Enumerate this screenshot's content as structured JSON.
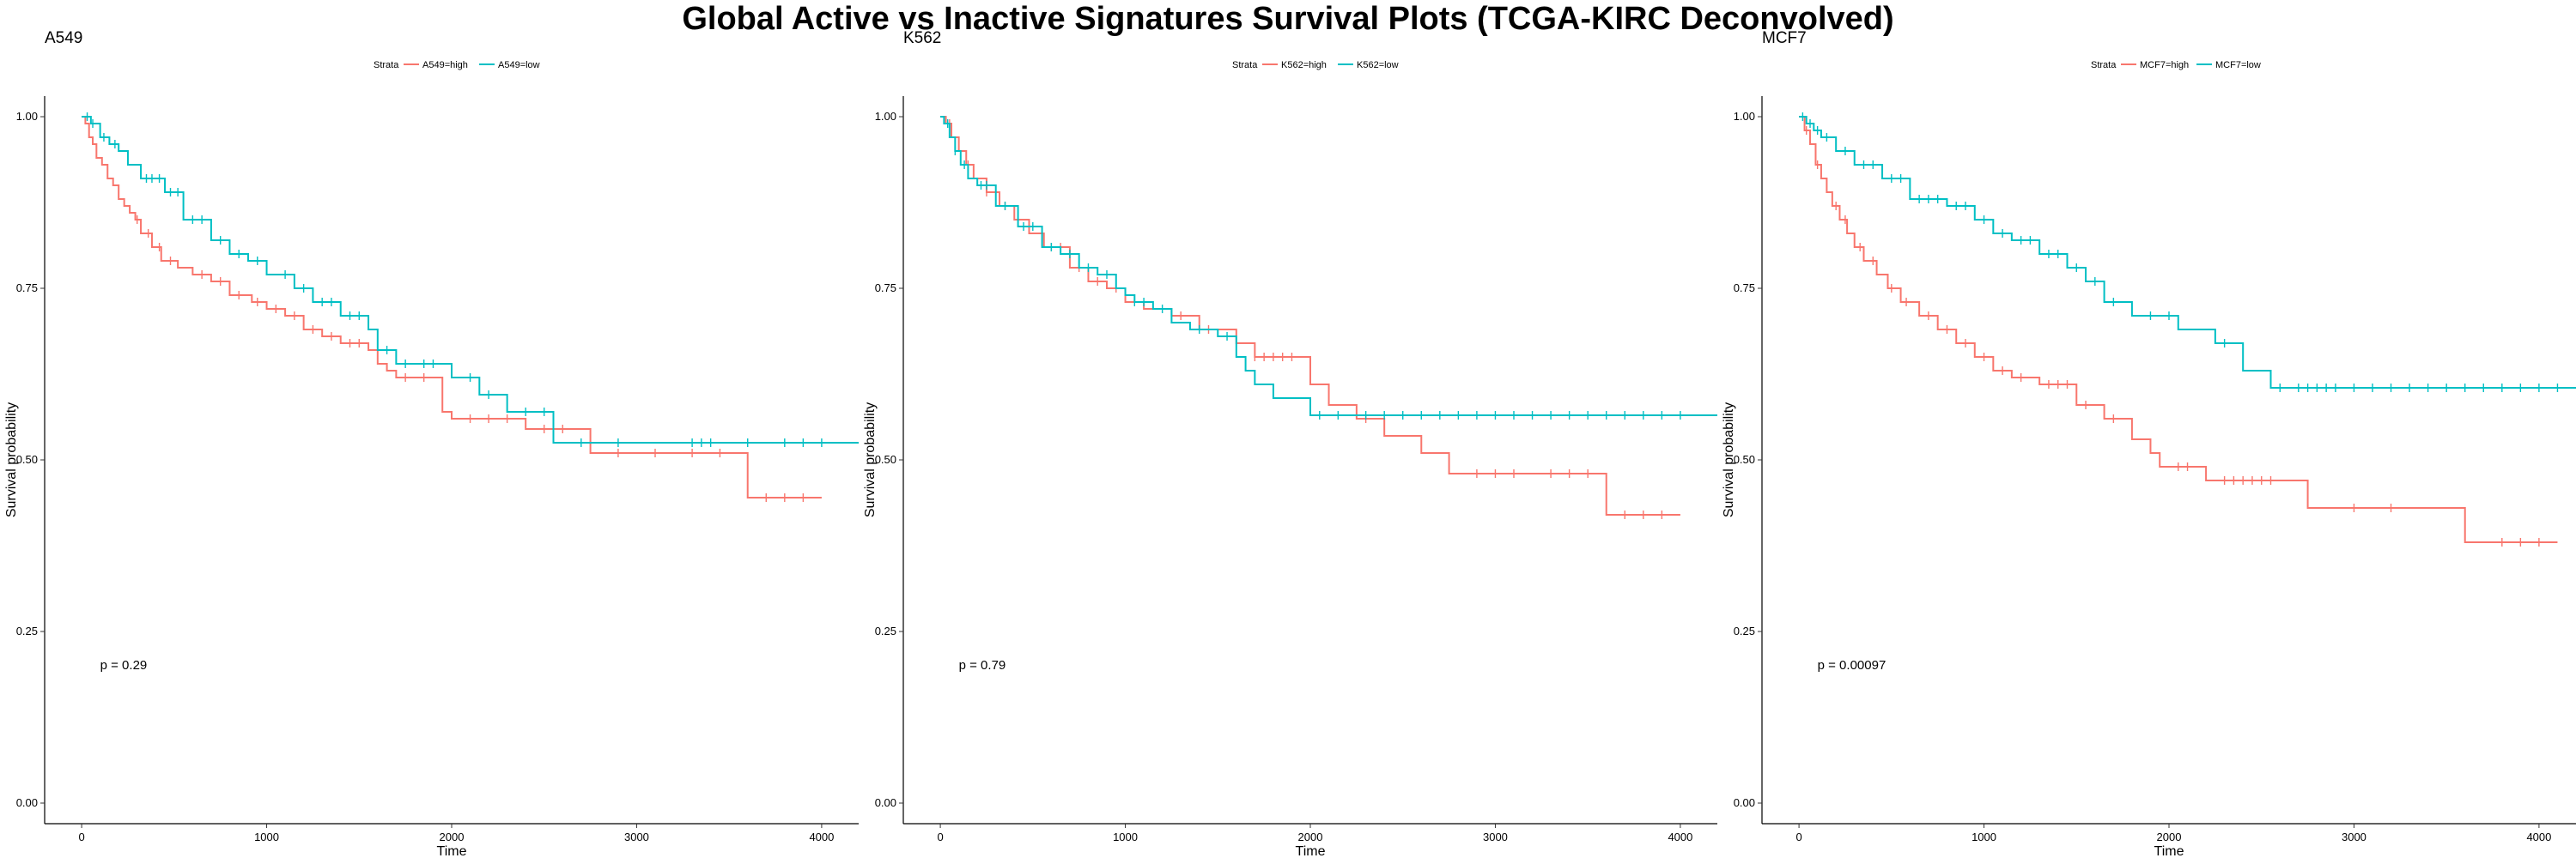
{
  "page": {
    "title": "Global Active vs Inactive Signatures Survival Plots (TCGA-KIRC Deconvolved)"
  },
  "colors": {
    "high": "#F8766D",
    "low": "#00BFC4",
    "axis": "#000000"
  },
  "chart_data": [
    {
      "type": "line",
      "subtype": "kaplan-meier-step",
      "title": "A549",
      "xlabel": "Time",
      "ylabel": "Survival probability",
      "xlim": [
        -200,
        4200
      ],
      "ylim": [
        -0.03,
        1.03
      ],
      "x_ticks": [
        0,
        1000,
        2000,
        3000,
        4000
      ],
      "x_tick_labels": [
        "0",
        "1000",
        "2000",
        "3000",
        "4000"
      ],
      "y_ticks": [
        0,
        0.25,
        0.5,
        0.75,
        1.0
      ],
      "y_tick_labels": [
        "0.00",
        "0.25",
        "0.50",
        "0.75",
        "1.00"
      ],
      "grid": false,
      "legend": {
        "title": "Strata",
        "position": "top",
        "labels": [
          "A549=high",
          "A549=low"
        ]
      },
      "annotation": "p = 0.29",
      "series": [
        {
          "name": "A549=high",
          "color": "#F8766D",
          "x": [
            0,
            20,
            40,
            60,
            80,
            110,
            140,
            170,
            200,
            230,
            260,
            290,
            320,
            380,
            430,
            520,
            600,
            700,
            800,
            920,
            1000,
            1100,
            1200,
            1300,
            1400,
            1550,
            1600,
            1650,
            1700,
            1950,
            2000,
            2400,
            2750,
            3600,
            3650
          ],
          "y": [
            1.0,
            0.99,
            0.97,
            0.96,
            0.94,
            0.93,
            0.91,
            0.9,
            0.88,
            0.87,
            0.86,
            0.85,
            0.83,
            0.81,
            0.79,
            0.78,
            0.77,
            0.76,
            0.74,
            0.73,
            0.72,
            0.71,
            0.69,
            0.68,
            0.67,
            0.66,
            0.64,
            0.63,
            0.62,
            0.57,
            0.56,
            0.545,
            0.51,
            0.445,
            0.445
          ],
          "censor_x": [
            300,
            360,
            420,
            480,
            650,
            750,
            850,
            950,
            1050,
            1150,
            1250,
            1350,
            1450,
            1500,
            1750,
            1850,
            2100,
            2200,
            2300,
            2500,
            2600,
            2900,
            3100,
            3300,
            3450,
            3700,
            3800,
            3900
          ],
          "end_x": 4000
        },
        {
          "name": "A549=low",
          "color": "#00BFC4",
          "x": [
            0,
            50,
            100,
            150,
            200,
            250,
            320,
            450,
            550,
            700,
            800,
            900,
            1000,
            1150,
            1250,
            1400,
            1550,
            1600,
            1700,
            2000,
            2150,
            2300,
            2550
          ],
          "y": [
            1.0,
            0.99,
            0.97,
            0.96,
            0.95,
            0.93,
            0.91,
            0.89,
            0.85,
            0.82,
            0.8,
            0.79,
            0.77,
            0.75,
            0.73,
            0.71,
            0.69,
            0.66,
            0.64,
            0.62,
            0.595,
            0.57,
            0.525
          ],
          "censor_x": [
            30,
            60,
            120,
            180,
            350,
            380,
            420,
            480,
            520,
            600,
            650,
            750,
            850,
            950,
            1100,
            1200,
            1300,
            1350,
            1450,
            1500,
            1650,
            1750,
            1850,
            1900,
            2100,
            2200,
            2400,
            2500,
            2700,
            2900,
            3300,
            3350,
            3400,
            3600,
            3800,
            3900,
            4000
          ],
          "end_x": 4200
        }
      ]
    },
    {
      "type": "line",
      "subtype": "kaplan-meier-step",
      "title": "K562",
      "xlabel": "Time",
      "ylabel": "Survival probability",
      "xlim": [
        -200,
        4200
      ],
      "ylim": [
        -0.03,
        1.03
      ],
      "x_ticks": [
        0,
        1000,
        2000,
        3000,
        4000
      ],
      "x_tick_labels": [
        "0",
        "1000",
        "2000",
        "3000",
        "4000"
      ],
      "y_ticks": [
        0,
        0.25,
        0.5,
        0.75,
        1.0
      ],
      "y_tick_labels": [
        "0.00",
        "0.25",
        "0.50",
        "0.75",
        "1.00"
      ],
      "grid": false,
      "legend": {
        "title": "Strata",
        "position": "top",
        "labels": [
          "K562=high",
          "K562=low"
        ]
      },
      "annotation": "p = 0.79",
      "series": [
        {
          "name": "K562=high",
          "color": "#F8766D",
          "x": [
            0,
            30,
            60,
            100,
            140,
            180,
            250,
            320,
            400,
            480,
            560,
            700,
            800,
            900,
            1000,
            1100,
            1250,
            1400,
            1600,
            1700,
            2000,
            2100,
            2250,
            2400,
            2600,
            2750,
            3600,
            3650
          ],
          "y": [
            1.0,
            0.99,
            0.97,
            0.95,
            0.93,
            0.91,
            0.89,
            0.87,
            0.85,
            0.83,
            0.81,
            0.78,
            0.76,
            0.75,
            0.73,
            0.72,
            0.71,
            0.69,
            0.67,
            0.65,
            0.61,
            0.58,
            0.56,
            0.535,
            0.51,
            0.48,
            0.42,
            0.42
          ],
          "censor_x": [
            50,
            150,
            250,
            350,
            600,
            650,
            750,
            850,
            950,
            1300,
            1450,
            1700,
            1750,
            1800,
            1850,
            1900,
            2300,
            2900,
            3000,
            3100,
            3300,
            3400,
            3500,
            3700,
            3800,
            3900
          ],
          "end_x": 4000
        },
        {
          "name": "K562=low",
          "color": "#00BFC4",
          "x": [
            0,
            20,
            50,
            80,
            110,
            150,
            200,
            300,
            420,
            550,
            650,
            750,
            850,
            950,
            1000,
            1050,
            1150,
            1250,
            1350,
            1500,
            1600,
            1650,
            1700,
            1800,
            2000
          ],
          "y": [
            1.0,
            0.99,
            0.97,
            0.95,
            0.93,
            0.91,
            0.9,
            0.87,
            0.84,
            0.81,
            0.8,
            0.78,
            0.77,
            0.75,
            0.74,
            0.73,
            0.72,
            0.7,
            0.69,
            0.68,
            0.65,
            0.63,
            0.61,
            0.59,
            0.565
          ],
          "censor_x": [
            40,
            80,
            130,
            220,
            250,
            350,
            450,
            500,
            600,
            700,
            800,
            900,
            1050,
            1100,
            1200,
            1400,
            1550,
            2050,
            2150,
            2300,
            2400,
            2500,
            2600,
            2700,
            2800,
            2900,
            3000,
            3100,
            3200,
            3300,
            3400,
            3500,
            3600,
            3700,
            3800,
            3900,
            4000
          ],
          "end_x": 4200
        }
      ]
    },
    {
      "type": "line",
      "subtype": "kaplan-meier-step",
      "title": "MCF7",
      "xlabel": "Time",
      "ylabel": "Survival probability",
      "xlim": [
        -200,
        4200
      ],
      "ylim": [
        -0.03,
        1.03
      ],
      "x_ticks": [
        0,
        1000,
        2000,
        3000,
        4000
      ],
      "x_tick_labels": [
        "0",
        "1000",
        "2000",
        "3000",
        "4000"
      ],
      "y_ticks": [
        0,
        0.25,
        0.5,
        0.75,
        1.0
      ],
      "y_tick_labels": [
        "0.00",
        "0.25",
        "0.50",
        "0.75",
        "1.00"
      ],
      "grid": false,
      "legend": {
        "title": "Strata",
        "position": "top",
        "labels": [
          "MCF7=high",
          "MCF7=low"
        ]
      },
      "annotation": "p = 0.00097",
      "series": [
        {
          "name": "MCF7=high",
          "color": "#F8766D",
          "x": [
            0,
            30,
            60,
            90,
            120,
            150,
            180,
            220,
            260,
            300,
            350,
            420,
            480,
            550,
            650,
            750,
            850,
            950,
            1050,
            1150,
            1300,
            1500,
            1650,
            1800,
            1900,
            1950,
            2200,
            2750,
            3600
          ],
          "y": [
            1.0,
            0.98,
            0.96,
            0.93,
            0.91,
            0.89,
            0.87,
            0.85,
            0.83,
            0.81,
            0.79,
            0.77,
            0.75,
            0.73,
            0.71,
            0.69,
            0.67,
            0.65,
            0.63,
            0.62,
            0.61,
            0.58,
            0.56,
            0.53,
            0.51,
            0.49,
            0.47,
            0.43,
            0.38
          ],
          "censor_x": [
            40,
            100,
            200,
            250,
            330,
            400,
            500,
            580,
            700,
            800,
            900,
            1000,
            1100,
            1200,
            1350,
            1400,
            1450,
            1550,
            1700,
            2050,
            2100,
            2300,
            2350,
            2400,
            2450,
            2500,
            2550,
            3000,
            3200,
            3800,
            3900,
            4000
          ],
          "end_x": 4100
        },
        {
          "name": "MCF7=low",
          "color": "#00BFC4",
          "x": [
            0,
            40,
            80,
            120,
            200,
            300,
            450,
            600,
            800,
            950,
            1050,
            1150,
            1300,
            1450,
            1550,
            1650,
            1800,
            2050,
            2250,
            2400,
            2550
          ],
          "y": [
            1.0,
            0.99,
            0.98,
            0.97,
            0.95,
            0.93,
            0.91,
            0.88,
            0.87,
            0.85,
            0.83,
            0.82,
            0.8,
            0.78,
            0.76,
            0.73,
            0.71,
            0.69,
            0.67,
            0.63,
            0.605
          ],
          "censor_x": [
            20,
            60,
            100,
            150,
            250,
            350,
            400,
            500,
            550,
            650,
            700,
            750,
            850,
            900,
            1000,
            1100,
            1200,
            1250,
            1350,
            1400,
            1500,
            1600,
            1700,
            1900,
            2000,
            2300,
            2600,
            2700,
            2750,
            2800,
            2850,
            2900,
            3000,
            3100,
            3200,
            3300,
            3400,
            3500,
            3600,
            3700,
            3800,
            3900,
            4000,
            4100
          ],
          "end_x": 4200
        }
      ]
    }
  ]
}
